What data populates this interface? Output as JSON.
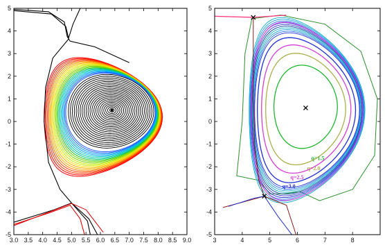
{
  "chart_data": [
    {
      "type": "contour",
      "xlim": [
        3.0,
        9.0
      ],
      "ylim": [
        -5,
        5
      ],
      "xticks": [
        "3.0",
        "3.5",
        "4.0",
        "4.5",
        "5.0",
        "5.5",
        "6.0",
        "6.5",
        "7.0",
        "7.5",
        "8.0",
        "8.5",
        "9.0"
      ],
      "yticks": [
        "5",
        "4",
        "3",
        "2",
        "1",
        "0",
        "-1",
        "-2",
        "-3",
        "-4",
        "-5"
      ],
      "magnetic_axis": [
        6.4,
        0.5
      ],
      "x_points": [
        [
          4.8,
          3.6
        ],
        [
          5.0,
          -3.6
        ]
      ],
      "outer_boundary": {
        "left": 4.05,
        "right": 8.15,
        "top": 3.95,
        "bottom": -3.45
      },
      "contour_color_order": [
        "black",
        "blue",
        "cyan",
        "green",
        "yellow",
        "orange",
        "red"
      ],
      "grid": false
    },
    {
      "type": "contour",
      "xlim": [
        3,
        9
      ],
      "ylim": [
        -5,
        5
      ],
      "xticks": [
        "3",
        "4",
        "5",
        "6",
        "7",
        "8"
      ],
      "yticks": [
        "5",
        "4",
        "3",
        "2",
        "1",
        "0",
        "-1",
        "-2",
        "-3",
        "-4",
        "-5"
      ],
      "magnetic_axis": [
        6.3,
        0.6
      ],
      "x_points": [
        [
          4.4,
          4.6
        ],
        [
          4.8,
          -3.3
        ]
      ],
      "q_surfaces": [
        {
          "label": "q=1.5",
          "color": "#1db82e"
        },
        {
          "label": "q=2.0",
          "color": "#aab04a"
        },
        {
          "label": "q=2.5",
          "color": "#d33fd3"
        },
        {
          "label": "q=3.0",
          "color": "#1f2fd6"
        }
      ],
      "extra_contours": [
        {
          "color": "#2a8f2a"
        },
        {
          "color": "#10b0c8"
        },
        {
          "color": "#ff2d7a"
        },
        {
          "color": "#8a1b1b"
        }
      ],
      "grid": false
    }
  ]
}
